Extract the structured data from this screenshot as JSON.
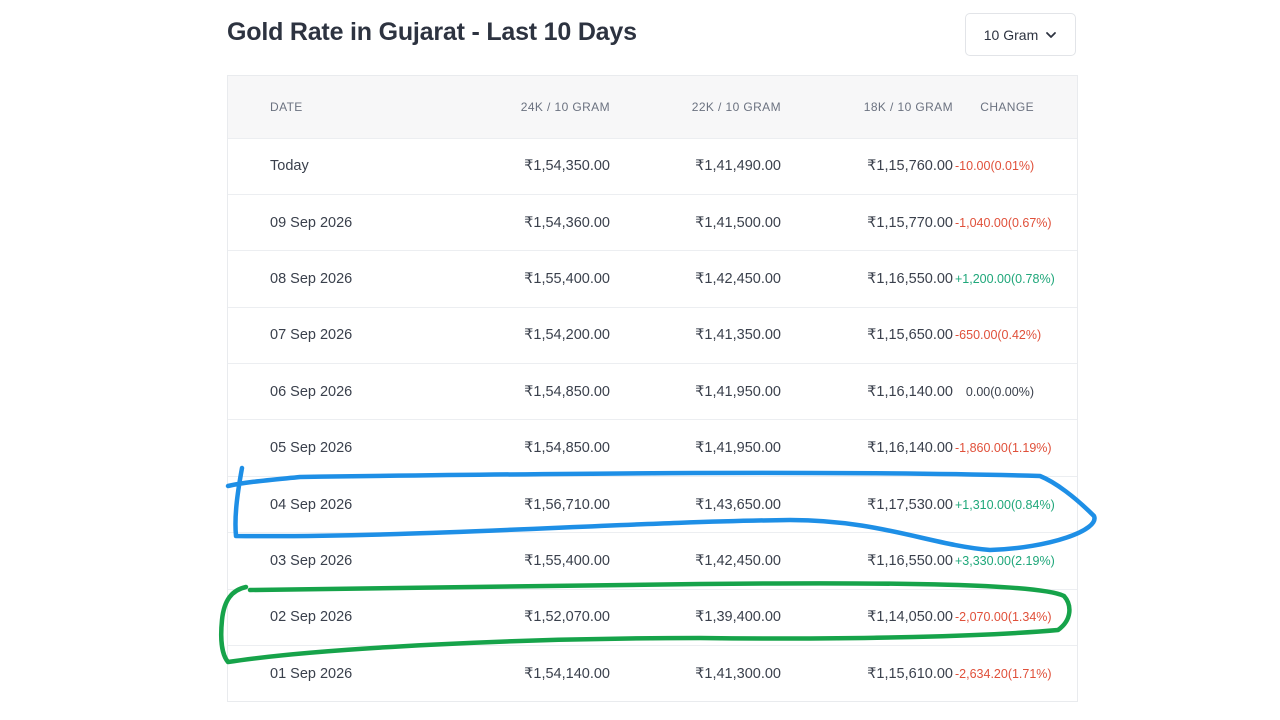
{
  "title": "Gold Rate in Gujarat - Last 10 Days",
  "unit_select": {
    "value": "10 Gram"
  },
  "table": {
    "headers": {
      "date": "DATE",
      "k24": "24K / 10 GRAM",
      "k22": "22K / 10 GRAM",
      "k18": "18K / 10 GRAM",
      "change": "CHANGE"
    },
    "rows": [
      {
        "date": "Today",
        "k24": "₹1,54,350.00",
        "k22": "₹1,41,490.00",
        "k18": "₹1,15,760.00",
        "change": "-10.00(0.01%)",
        "trend": "neg"
      },
      {
        "date": "09 Sep 2026",
        "k24": "₹1,54,360.00",
        "k22": "₹1,41,500.00",
        "k18": "₹1,15,770.00",
        "change": "-1,040.00(0.67%)",
        "trend": "neg"
      },
      {
        "date": "08 Sep 2026",
        "k24": "₹1,55,400.00",
        "k22": "₹1,42,450.00",
        "k18": "₹1,16,550.00",
        "change": "+1,200.00(0.78%)",
        "trend": "pos"
      },
      {
        "date": "07 Sep 2026",
        "k24": "₹1,54,200.00",
        "k22": "₹1,41,350.00",
        "k18": "₹1,15,650.00",
        "change": "-650.00(0.42%)",
        "trend": "neg"
      },
      {
        "date": "06 Sep 2026",
        "k24": "₹1,54,850.00",
        "k22": "₹1,41,950.00",
        "k18": "₹1,16,140.00",
        "change": "0.00(0.00%)",
        "trend": "zero"
      },
      {
        "date": "05 Sep 2026",
        "k24": "₹1,54,850.00",
        "k22": "₹1,41,950.00",
        "k18": "₹1,16,140.00",
        "change": "-1,860.00(1.19%)",
        "trend": "neg"
      },
      {
        "date": "04 Sep 2026",
        "k24": "₹1,56,710.00",
        "k22": "₹1,43,650.00",
        "k18": "₹1,17,530.00",
        "change": "+1,310.00(0.84%)",
        "trend": "pos"
      },
      {
        "date": "03 Sep 2026",
        "k24": "₹1,55,400.00",
        "k22": "₹1,42,450.00",
        "k18": "₹1,16,550.00",
        "change": "+3,330.00(2.19%)",
        "trend": "pos"
      },
      {
        "date": "02 Sep 2026",
        "k24": "₹1,52,070.00",
        "k22": "₹1,39,400.00",
        "k18": "₹1,14,050.00",
        "change": "-2,070.00(1.34%)",
        "trend": "neg"
      },
      {
        "date": "01 Sep 2026",
        "k24": "₹1,54,140.00",
        "k22": "₹1,41,300.00",
        "k18": "₹1,15,610.00",
        "change": "-2,634.20(1.71%)",
        "trend": "neg"
      }
    ]
  },
  "colors": {
    "negative": "#e0503a",
    "positive": "#1fa77a",
    "annotation_blue": "#1e8fe6",
    "annotation_green": "#16a34a"
  },
  "icons": {
    "unit_select": "chevron-down-icon"
  }
}
